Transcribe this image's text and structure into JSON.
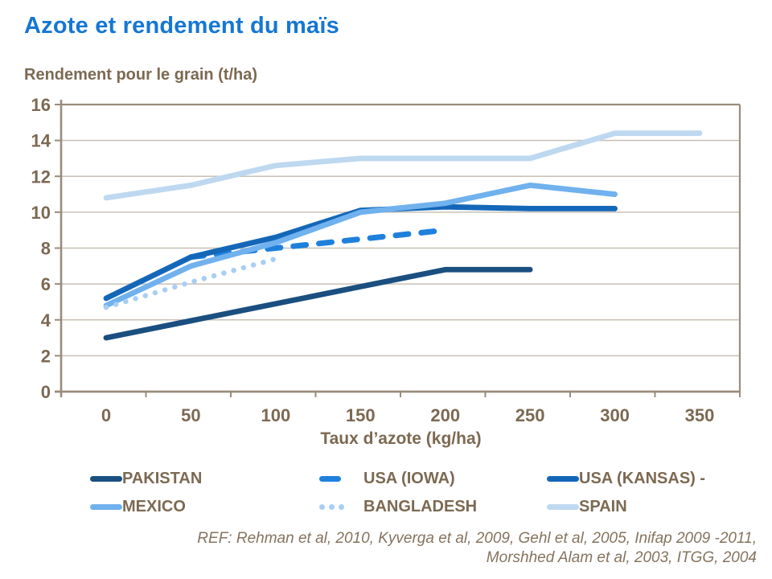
{
  "page": {
    "title": "Azote et rendement du maïs",
    "subtitle": "Rendement pour le grain (t/ha)",
    "x_axis_title": "Taux d’azote (kg/ha)",
    "ref": {
      "line1": "REF: Rehman et al, 2010, Kyverga et al, 2009, Gehl et al, 2005, Inifap 2009 -2011,",
      "line2": "Morshhed Alam et al, 2003, ITGG, 2004"
    }
  },
  "colors": {
    "title_blue": "#1577D2",
    "text_brown": "#7C6952",
    "axis_line": "#9A8C7C",
    "gridline": "#C8C0B6"
  },
  "chart_data": {
    "type": "line",
    "title": "Azote et rendement du maïs",
    "xlabel": "Taux d’azote (kg/ha)",
    "ylabel": "Rendement pour le grain (t/ha)",
    "x": [
      0,
      50,
      100,
      150,
      200,
      250,
      300,
      350
    ],
    "x_tick_labels": [
      "0",
      "50",
      "100",
      "150",
      "200",
      "250",
      "300",
      "350"
    ],
    "y_ticks": [
      0,
      2,
      4,
      6,
      8,
      10,
      12,
      14,
      16
    ],
    "ylim": [
      0,
      16
    ],
    "grid": "horizontal",
    "legend_position": "bottom",
    "series": [
      {
        "name": "PAKISTAN",
        "color": "#1A4F80",
        "style": "solid",
        "values": [
          3.0,
          3.95,
          4.9,
          5.85,
          6.8,
          6.8,
          null,
          null
        ]
      },
      {
        "name": "USA (IOWA)",
        "color": "#1F80DC",
        "style": "dashed",
        "values": [
          null,
          7.5,
          8.0,
          8.5,
          9.0,
          null,
          null,
          null
        ]
      },
      {
        "name": "USA (KANSAS) -",
        "color": "#1467B8",
        "style": "solid",
        "values": [
          5.2,
          7.5,
          8.6,
          10.1,
          10.3,
          10.2,
          10.2,
          null
        ]
      },
      {
        "name": "MEXICO",
        "color": "#70B1EE",
        "style": "solid",
        "values": [
          4.8,
          7.0,
          8.3,
          10.0,
          10.5,
          11.5,
          11.0,
          null
        ]
      },
      {
        "name": "BANGLADESH",
        "color": "#A9CEF4",
        "style": "dotted",
        "values": [
          4.7,
          6.1,
          7.4,
          null,
          null,
          null,
          null,
          null
        ]
      },
      {
        "name": "SPAIN",
        "color": "#BED8F0",
        "style": "solid",
        "values": [
          10.8,
          11.5,
          12.6,
          13.0,
          13.0,
          13.0,
          14.4,
          14.4
        ]
      }
    ]
  }
}
